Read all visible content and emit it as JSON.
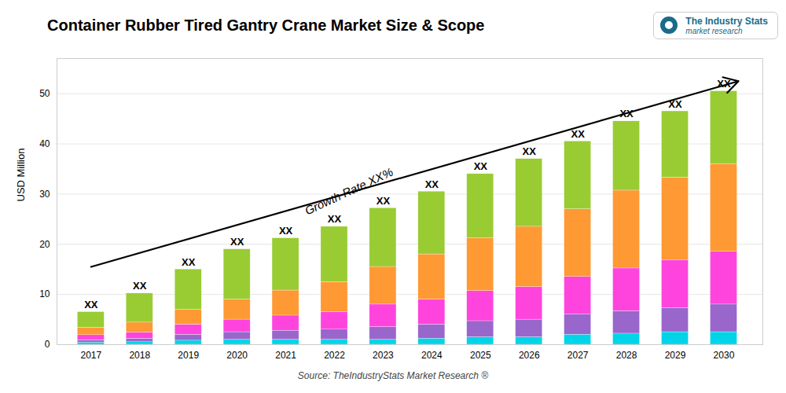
{
  "chart_data": {
    "type": "bar",
    "stacked": true,
    "title": "Container Rubber Tired Gantry Crane Market Size & Scope",
    "ylabel": "USD Million",
    "caption": "Source: TheIndustryStats Market Research ®",
    "logo_texts": [
      "The Industry Stats",
      "market research"
    ],
    "x": [
      2017,
      2018,
      2019,
      2020,
      2021,
      2022,
      2023,
      2024,
      2025,
      2026,
      2027,
      2028,
      2029,
      2030
    ],
    "series": [
      {
        "color": "#00d4e8",
        "values": [
          0.4,
          0.5,
          0.8,
          1.0,
          1.0,
          1.0,
          1.0,
          1.2,
          1.5,
          1.5,
          2.0,
          2.2,
          2.5,
          2.5
        ]
      },
      {
        "color": "#9966cc",
        "values": [
          0.5,
          0.7,
          1.2,
          1.5,
          1.8,
          2.0,
          2.5,
          2.8,
          3.2,
          3.5,
          4.0,
          4.5,
          4.8,
          5.5
        ]
      },
      {
        "color": "#ff44dd",
        "values": [
          1.0,
          1.2,
          2.0,
          2.5,
          3.0,
          3.5,
          4.5,
          5.0,
          6.0,
          6.5,
          7.5,
          8.5,
          9.5,
          10.5
        ]
      },
      {
        "color": "#ff9933",
        "values": [
          1.5,
          2.0,
          3.0,
          4.0,
          5.0,
          6.0,
          7.5,
          9.0,
          10.5,
          12.0,
          13.5,
          15.5,
          16.5,
          17.5
        ]
      },
      {
        "color": "#99cc33",
        "values": [
          3.1,
          5.8,
          8.0,
          10.0,
          10.4,
          11.0,
          11.7,
          12.5,
          12.8,
          13.5,
          13.5,
          13.8,
          13.2,
          14.5
        ]
      }
    ],
    "xlim": [
      2016.3,
      2030.8
    ],
    "xticks": [
      2017,
      2018,
      2019,
      2020,
      2021,
      2022,
      2023,
      2024,
      2025,
      2026,
      2027,
      2028,
      2029,
      2030
    ],
    "ylim": [
      0,
      57
    ],
    "yticks": [
      0,
      10,
      20,
      30,
      40,
      50
    ],
    "grid": true,
    "annotations": [
      {
        "text": "XX",
        "x": 2017,
        "y": 6.5
      },
      {
        "text": "XX",
        "x": 2018,
        "y": 10.2
      },
      {
        "text": "XX",
        "x": 2019,
        "y": 15.0
      },
      {
        "text": "XX",
        "x": 2020,
        "y": 19.0
      },
      {
        "text": "XX",
        "x": 2021,
        "y": 21.2
      },
      {
        "text": "XX",
        "x": 2022,
        "y": 23.5
      },
      {
        "text": "XX",
        "x": 2023,
        "y": 27.2
      },
      {
        "text": "XX",
        "x": 2024,
        "y": 30.5
      },
      {
        "text": "XX",
        "x": 2025,
        "y": 34.0
      },
      {
        "text": "XX",
        "x": 2026,
        "y": 37.0
      },
      {
        "text": "XX",
        "x": 2027,
        "y": 40.5
      },
      {
        "text": "XX",
        "x": 2028,
        "y": 44.5
      },
      {
        "text": "XX",
        "x": 2029,
        "y": 46.5
      },
      {
        "text": "XX",
        "x": 2030,
        "y": 50.5
      },
      {
        "text": "Growth Rate XX%",
        "x": 2022.3,
        "y": 30.5
      }
    ],
    "arrows": [
      {
        "x1": 2017.0,
        "y1": 15.5,
        "x2": 2030.3,
        "y2": 52.5
      }
    ]
  }
}
